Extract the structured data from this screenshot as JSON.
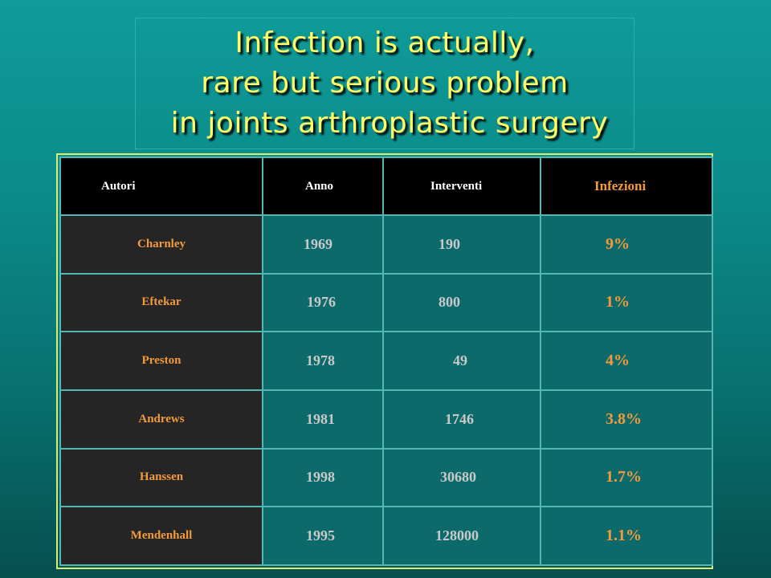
{
  "title": {
    "line1": "Infection is actually,",
    "line2": "rare but serious problem",
    "line3": " in joints arthroplastic surgery"
  },
  "table": {
    "headers": {
      "autori": "Autori",
      "anno": "Anno",
      "interventi": "Interventi",
      "infezioni": "Infezioni"
    },
    "rows": [
      {
        "autori": "Charnley",
        "anno": "1969",
        "interventi": "190",
        "infezioni": "9%"
      },
      {
        "autori": "Eftekar",
        "anno": "1976",
        "interventi": "800",
        "infezioni": "1%"
      },
      {
        "autori": "Preston",
        "anno": "1978",
        "interventi": "49",
        "infezioni": "4%"
      },
      {
        "autori": "Andrews",
        "anno": "1981",
        "interventi": "1746",
        "infezioni": "3.8%"
      },
      {
        "autori": "Hanssen",
        "anno": "1998",
        "interventi": "30680",
        "infezioni": "1.7%"
      },
      {
        "autori": "Mendenhall",
        "anno": "1995",
        "interventi": "128000",
        "infezioni": "1.1%"
      }
    ]
  },
  "colors": {
    "title_text": "#ffff66",
    "header_bg": "#000000",
    "author_col_bg": "#252525",
    "data_cell_bg": "#0c6a6a",
    "accent_orange": "#f29a3c",
    "cell_text_gray": "#c9c9c9"
  }
}
